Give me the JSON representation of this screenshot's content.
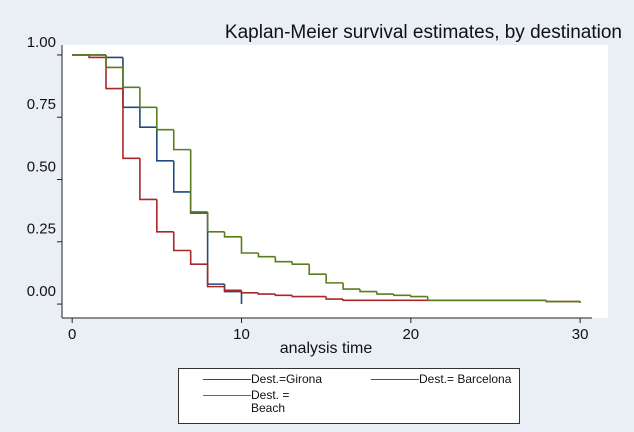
{
  "chart_data": {
    "type": "line",
    "step": true,
    "title": "Kaplan-Meier survival estimates, by destination",
    "x_label": "analysis time",
    "xlim": [
      -0.6,
      30.7
    ],
    "ylim": [
      -0.056,
      1.04
    ],
    "xticks": [
      0,
      10,
      20,
      30
    ],
    "yticks": [
      {
        "value": 0,
        "label": "0.00"
      },
      {
        "value": 0.25,
        "label": "0.25"
      },
      {
        "value": 0.5,
        "label": "0.50"
      },
      {
        "value": 0.75,
        "label": "0.75"
      },
      {
        "value": 1,
        "label": "1.00"
      }
    ],
    "series": [
      {
        "name": "Dest.=Girona",
        "color": "#1f4a80",
        "x": [
          0,
          2,
          3,
          4,
          5,
          6,
          7,
          8,
          9,
          10
        ],
        "values": [
          1.0,
          0.99,
          0.79,
          0.71,
          0.575,
          0.45,
          0.365,
          0.08,
          0.05,
          0
        ]
      },
      {
        "name": "Dest.= Barcelona",
        "color": "#a8282a",
        "x": [
          0,
          1,
          2,
          3,
          4,
          5,
          6,
          7,
          8,
          9,
          10,
          11,
          12,
          13,
          15,
          16,
          28,
          30
        ],
        "values": [
          1.0,
          0.99,
          0.865,
          0.585,
          0.42,
          0.29,
          0.215,
          0.16,
          0.07,
          0.055,
          0.045,
          0.04,
          0.035,
          0.03,
          0.02,
          0.015,
          0.01,
          0.005
        ]
      },
      {
        "name": "Dest. =\nBeach",
        "color": "#5b7d1f",
        "x": [
          0,
          2,
          3,
          4,
          5,
          6,
          7,
          8,
          9,
          10,
          11,
          12,
          13,
          14,
          15,
          16,
          17,
          18,
          19,
          20,
          21,
          28,
          30
        ],
        "values": [
          1.0,
          0.95,
          0.87,
          0.79,
          0.7,
          0.62,
          0.37,
          0.29,
          0.27,
          0.205,
          0.19,
          0.17,
          0.16,
          0.12,
          0.085,
          0.06,
          0.05,
          0.04,
          0.035,
          0.03,
          0.015,
          0.01,
          0.005
        ]
      }
    ]
  }
}
